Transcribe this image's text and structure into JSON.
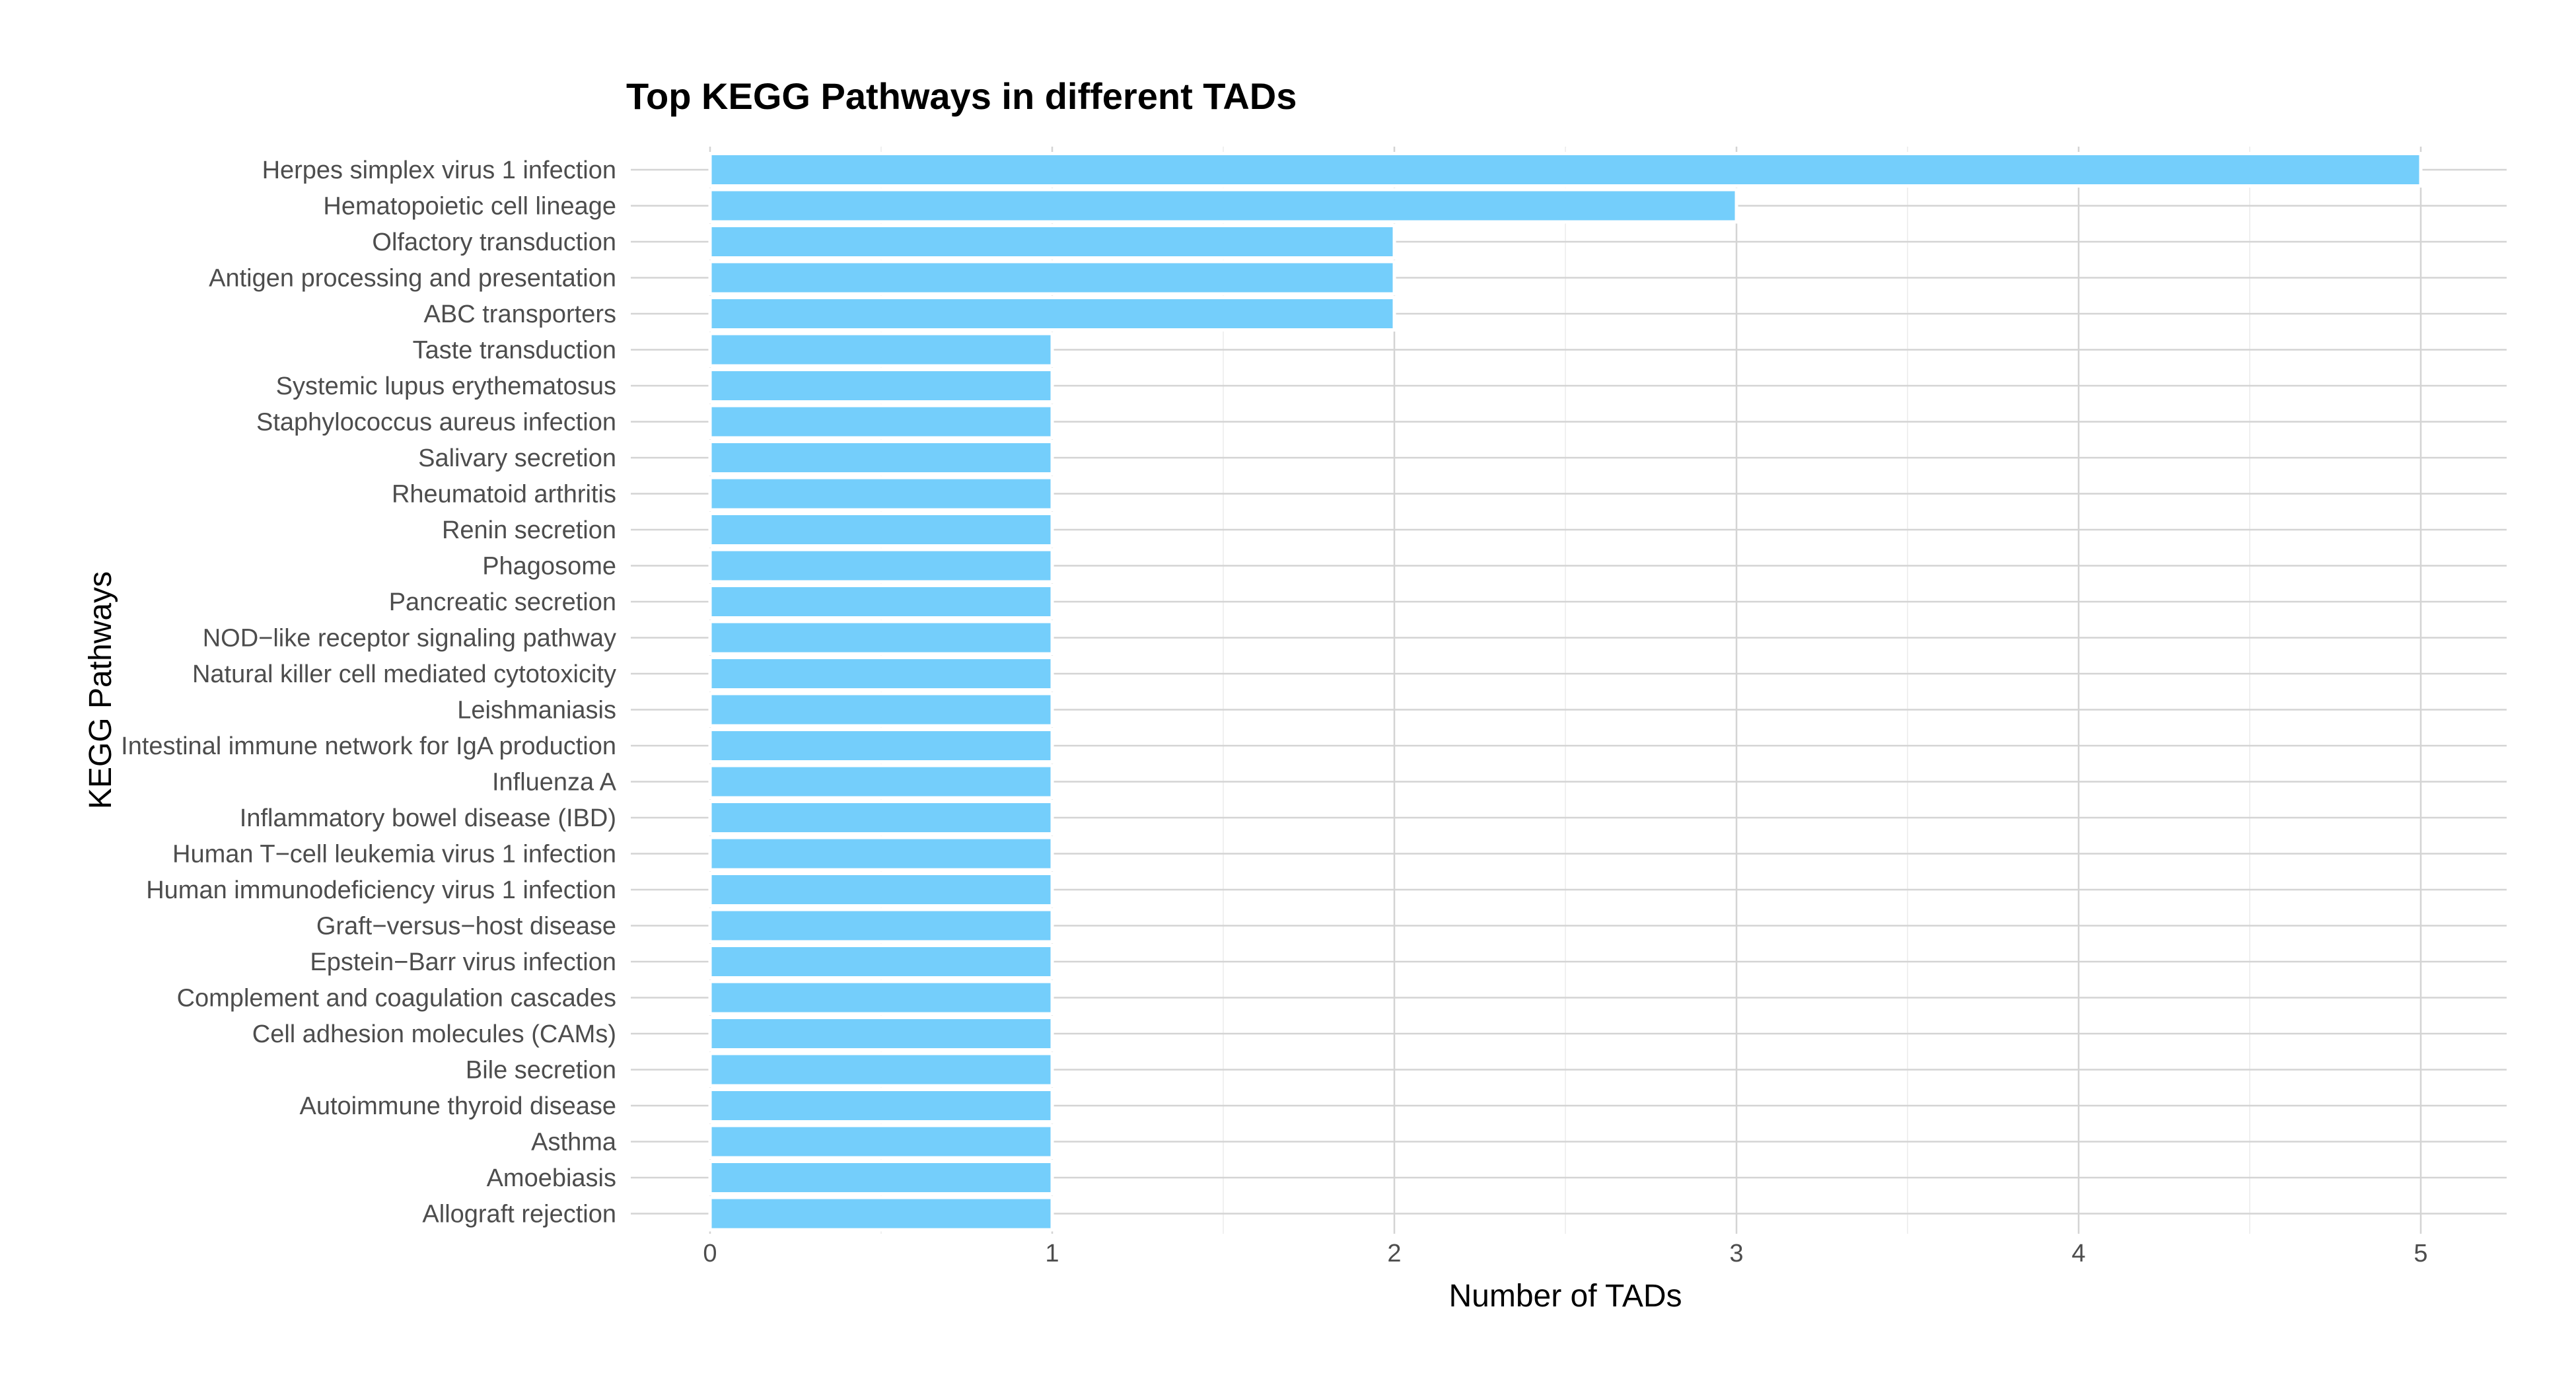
{
  "chart_data": {
    "type": "bar",
    "orientation": "horizontal",
    "title": "Top KEGG Pathways in different TADs",
    "xlabel": "Number of TADs",
    "ylabel": "KEGG Pathways",
    "xlim": [
      0,
      5
    ],
    "xticks": [
      "0",
      "1",
      "2",
      "3",
      "4",
      "5"
    ],
    "grid": true,
    "legend": "none",
    "bar_color": "#74CEFB",
    "categories": [
      "Herpes simplex virus 1 infection",
      "Hematopoietic cell lineage",
      "Olfactory transduction",
      "Antigen processing and presentation",
      "ABC transporters",
      "Taste transduction",
      "Systemic lupus erythematosus",
      "Staphylococcus aureus infection",
      "Salivary secretion",
      "Rheumatoid arthritis",
      "Renin secretion",
      "Phagosome",
      "Pancreatic secretion",
      "NOD−like receptor signaling pathway",
      "Natural killer cell mediated cytotoxicity",
      "Leishmaniasis",
      "Intestinal immune network for IgA production",
      "Influenza A",
      "Inflammatory bowel disease (IBD)",
      "Human T−cell leukemia virus 1 infection",
      "Human immunodeficiency virus 1 infection",
      "Graft−versus−host disease",
      "Epstein−Barr virus infection",
      "Complement and coagulation cascades",
      "Cell adhesion molecules (CAMs)",
      "Bile secretion",
      "Autoimmune thyroid disease",
      "Asthma",
      "Amoebiasis",
      "Allograft rejection"
    ],
    "values": [
      5,
      3,
      2,
      2,
      2,
      1,
      1,
      1,
      1,
      1,
      1,
      1,
      1,
      1,
      1,
      1,
      1,
      1,
      1,
      1,
      1,
      1,
      1,
      1,
      1,
      1,
      1,
      1,
      1,
      1
    ]
  }
}
